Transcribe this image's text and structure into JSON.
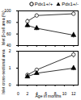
{
  "chart_data": [
    {
      "type": "line",
      "y_label": "Islet β-cell area (%)",
      "x": [
        2,
        4,
        12
      ],
      "xlim": [
        0,
        13
      ],
      "xticks": [
        0,
        2,
        4,
        6,
        8,
        10,
        12
      ],
      "ylim": [
        40,
        100
      ],
      "yticks": [
        40,
        60,
        80,
        100
      ],
      "tick_labels": "y",
      "legend": "top-right",
      "series": [
        {
          "name": "Pdx1+/+",
          "color": "#000000",
          "marker": "circle",
          "values": [
            82,
            92,
            95
          ],
          "errors": [
            4,
            3,
            3
          ]
        },
        {
          "name": "Pdx1+/-",
          "color": "#000000",
          "marker": "triangle",
          "values": [
            75,
            70,
            58
          ],
          "errors": [
            4,
            4,
            5
          ]
        }
      ]
    },
    {
      "type": "line",
      "x_label": "Age in months",
      "y_label": "Islet cross-sectional area (%)",
      "x": [
        2,
        4,
        12
      ],
      "xlim": [
        0,
        13
      ],
      "xticks": [
        0,
        2,
        4,
        6,
        8,
        10,
        12
      ],
      "ylim": [
        0,
        2
      ],
      "yticks": [
        0,
        1,
        2
      ],
      "series": [
        {
          "name": "Pdx1+/+",
          "color": "#000000",
          "marker": "circle",
          "values": [
            0.6,
            0.9,
            1.8
          ],
          "errors": [
            0.1,
            0.1,
            0.2
          ]
        },
        {
          "name": "Pdx1+/-",
          "color": "#000000",
          "marker": "triangle",
          "values": [
            0.5,
            0.7,
            1.0
          ],
          "errors": [
            0.1,
            0.1,
            0.15
          ]
        }
      ]
    }
  ]
}
